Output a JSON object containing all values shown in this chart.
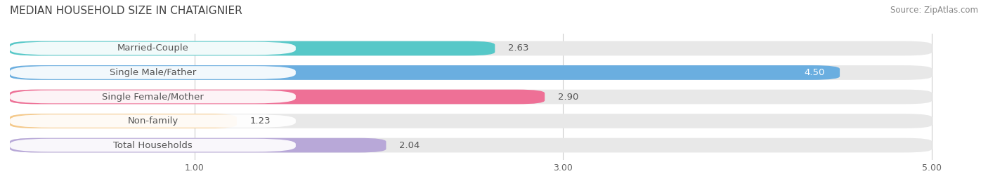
{
  "title": "MEDIAN HOUSEHOLD SIZE IN CHATAIGNIER",
  "source": "Source: ZipAtlas.com",
  "categories": [
    "Married-Couple",
    "Single Male/Father",
    "Single Female/Mother",
    "Non-family",
    "Total Households"
  ],
  "values": [
    2.63,
    4.5,
    2.9,
    1.23,
    2.04
  ],
  "bar_colors": [
    "#56C8C8",
    "#6AAEE0",
    "#EE7096",
    "#F5C98A",
    "#B8A8D8"
  ],
  "track_color": "#E8E8E8",
  "bar_height": 0.6,
  "xlim": [
    0,
    5.25
  ],
  "xticks": [
    1.0,
    3.0,
    5.0
  ],
  "xstart": 0.0,
  "xend": 5.0,
  "title_fontsize": 11,
  "label_fontsize": 9.5,
  "value_fontsize": 9.5,
  "source_fontsize": 8.5,
  "background_color": "#FFFFFF",
  "pill_color": "#FFFFFF",
  "pill_alpha": 0.92,
  "label_color": "#555555",
  "value_color_dark": "#555555",
  "value_color_light": "#FFFFFF"
}
